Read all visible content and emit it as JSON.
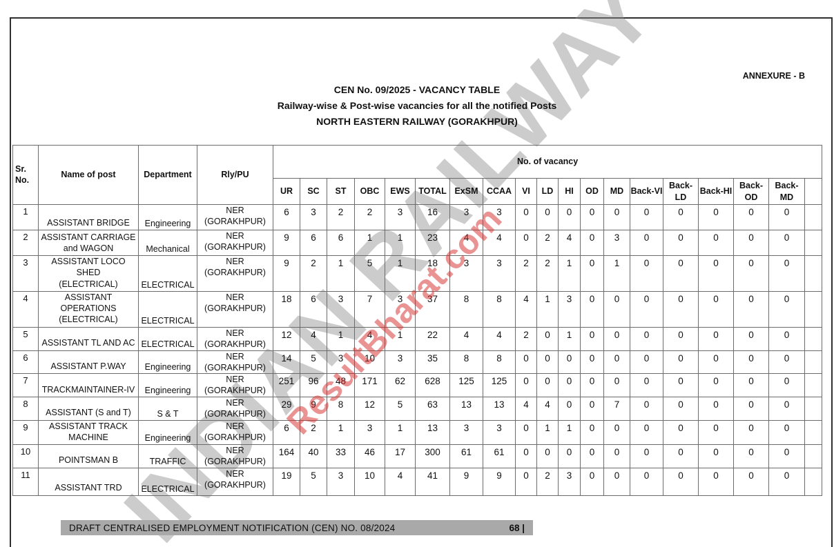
{
  "header": {
    "annexure": "ANNEXURE - B",
    "title": "CEN No. 09/2025 - VACANCY TABLE",
    "subtitle": "Railway-wise & Post-wise vacancies for all the notified Posts",
    "railway": "NORTH EASTERN RAILWAY (GORAKHPUR)"
  },
  "watermarks": {
    "gray": "INDIAN RAILWAY",
    "red": "ResultBharat.com"
  },
  "table": {
    "columns": {
      "sr": "Sr.\nNo.",
      "name": "Name of post",
      "department": "Department",
      "rly": "Rly/PU"
    },
    "vacancy_group": "No. of vacancy",
    "vacancy_headers": [
      "UR",
      "SC",
      "ST",
      "OBC",
      "EWS",
      "TOTAL",
      "ExSM",
      "CCAA",
      "VI",
      "LD",
      "HI",
      "OD",
      "MD",
      "Back-VI",
      "Back-LD",
      "Back-HI",
      "Back-OD",
      "Back-MD"
    ],
    "rows": [
      {
        "sr": "1",
        "name": "ASSISTANT BRIDGE",
        "department": "Engineering",
        "rly": "NER\n(GORAKHPUR)",
        "values": [
          6,
          3,
          2,
          2,
          3,
          16,
          3,
          3,
          0,
          0,
          0,
          0,
          0,
          0,
          0,
          0,
          0,
          0
        ]
      },
      {
        "sr": "2",
        "name": "ASSISTANT CARRIAGE\nand WAGON",
        "department": "Mechanical",
        "rly": "NER\n(GORAKHPUR)",
        "values": [
          9,
          6,
          6,
          1,
          1,
          23,
          4,
          4,
          0,
          2,
          4,
          0,
          3,
          0,
          0,
          0,
          0,
          0
        ]
      },
      {
        "sr": "3",
        "name": "ASSISTANT LOCO SHED\n(ELECTRICAL)",
        "department": "ELECTRICAL",
        "rly": "NER\n(GORAKHPUR)",
        "values": [
          9,
          2,
          1,
          5,
          1,
          18,
          3,
          3,
          2,
          2,
          1,
          0,
          1,
          0,
          0,
          0,
          0,
          0
        ]
      },
      {
        "sr": "4",
        "name": "ASSISTANT\nOPERATIONS\n(ELECTRICAL)",
        "department": "ELECTRICAL",
        "rly": "NER\n(GORAKHPUR)",
        "values": [
          18,
          6,
          3,
          7,
          3,
          37,
          8,
          8,
          4,
          1,
          3,
          0,
          0,
          0,
          0,
          0,
          0,
          0
        ]
      },
      {
        "sr": "5",
        "name": "ASSISTANT TL AND AC",
        "department": "ELECTRICAL",
        "rly": "NER\n(GORAKHPUR)",
        "values": [
          12,
          4,
          1,
          4,
          1,
          22,
          4,
          4,
          2,
          0,
          1,
          0,
          0,
          0,
          0,
          0,
          0,
          0
        ]
      },
      {
        "sr": "6",
        "name": "ASSISTANT P.WAY",
        "department": "Engineering",
        "rly": "NER\n(GORAKHPUR)",
        "values": [
          14,
          5,
          3,
          10,
          3,
          35,
          8,
          8,
          0,
          0,
          0,
          0,
          0,
          0,
          0,
          0,
          0,
          0
        ]
      },
      {
        "sr": "7",
        "name": "TRACKMAINTAINER-IV",
        "department": "Engineering",
        "rly": "NER\n(GORAKHPUR)",
        "values": [
          251,
          96,
          48,
          171,
          62,
          628,
          125,
          125,
          0,
          0,
          0,
          0,
          0,
          0,
          0,
          0,
          0,
          0
        ]
      },
      {
        "sr": "8",
        "name": "ASSISTANT (S and T)",
        "department": "S & T",
        "rly": "NER\n(GORAKHPUR)",
        "values": [
          29,
          9,
          8,
          12,
          5,
          63,
          13,
          13,
          4,
          4,
          0,
          0,
          7,
          0,
          0,
          0,
          0,
          0
        ]
      },
      {
        "sr": "9",
        "name": "ASSISTANT TRACK\nMACHINE",
        "department": "Engineering",
        "rly": "NER\n(GORAKHPUR)",
        "values": [
          6,
          2,
          1,
          3,
          1,
          13,
          3,
          3,
          0,
          1,
          1,
          0,
          0,
          0,
          0,
          0,
          0,
          0
        ]
      },
      {
        "sr": "10",
        "name": "POINTSMAN B",
        "department": "TRAFFIC",
        "rly": "NER\n(GORAKHPUR)",
        "values": [
          164,
          40,
          33,
          46,
          17,
          300,
          61,
          61,
          0,
          0,
          0,
          0,
          0,
          0,
          0,
          0,
          0,
          0
        ]
      },
      {
        "sr": "11",
        "name": "ASSISTANT TRD",
        "department": "ELECTRICAL",
        "rly": "NER\n(GORAKHPUR)",
        "values": [
          19,
          5,
          3,
          10,
          4,
          41,
          9,
          9,
          0,
          2,
          3,
          0,
          0,
          0,
          0,
          0,
          0,
          0
        ]
      }
    ]
  },
  "footer": {
    "text": "DRAFT CENTRALISED EMPLOYMENT NOTIFICATION (CEN) NO. 08/2024",
    "page_number": "68 |"
  },
  "colors": {
    "footer_bar": "#a9a9a9",
    "table_border": "#6b6b6b",
    "watermark_gray": "#8f8f8f",
    "watermark_red": "#d62828"
  }
}
